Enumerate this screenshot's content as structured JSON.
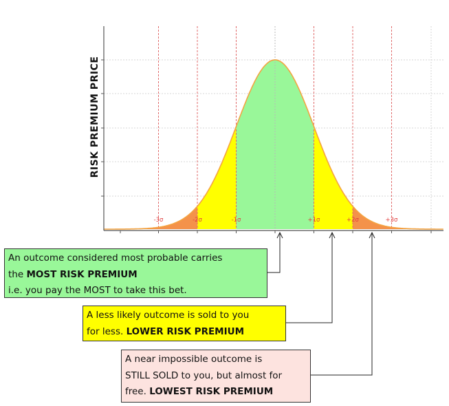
{
  "chart_data": {
    "type": "area",
    "ylabel": "RISK PREMIUM PRICE",
    "sigma_labels": [
      "-3σ",
      "-2σ",
      "-1σ",
      "+1σ",
      "+2σ",
      "+3σ"
    ],
    "bands": [
      {
        "range": [
          -1,
          1
        ],
        "color": "#99f799"
      },
      {
        "range": [
          -2,
          -1
        ],
        "color": "#ffff00"
      },
      {
        "range": [
          1,
          2
        ],
        "color": "#ffff00"
      },
      {
        "range": [
          -3.5,
          -2
        ],
        "color": "#f4924a"
      },
      {
        "range": [
          2,
          3.5
        ],
        "color": "#f4924a"
      }
    ],
    "curve_color": "#f4a340",
    "grid": true
  },
  "callouts": {
    "most": {
      "line1": "An outcome considered most probable carries",
      "line2_pre": "the ",
      "line2_bold": "MOST RISK PREMIUM",
      "line3": "i.e. you pay the MOST to take this bet."
    },
    "less": {
      "line1": "A less likely outcome is sold to you",
      "line2_pre": "for less. ",
      "line2_bold": "LOWER RISK PREMIUM"
    },
    "least": {
      "line1": "A near impossible outcome is",
      "line2": "STILL SOLD to you, but almost for",
      "line3_pre": "free. ",
      "line3_bold": "LOWEST RISK PREMIUM"
    }
  }
}
